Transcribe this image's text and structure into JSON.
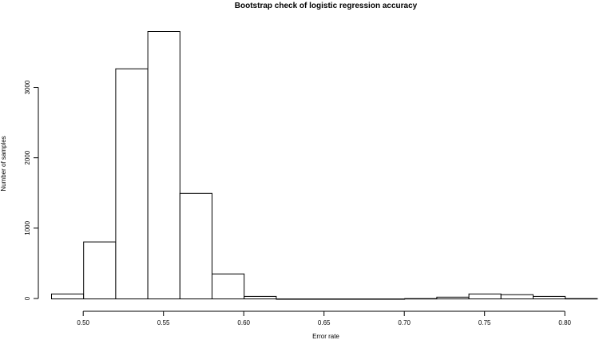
{
  "chart_data": {
    "type": "bar",
    "title": "Bootstrap check of logistic regression accuracy",
    "xlabel": "Error rate",
    "ylabel": "Number of samples",
    "xlim": [
      0.48,
      0.82
    ],
    "ylim": [
      0,
      3800
    ],
    "x_ticks": [
      "0.50",
      "0.55",
      "0.60",
      "0.65",
      "0.70",
      "0.75",
      "0.80"
    ],
    "y_ticks": [
      "0",
      "1000",
      "2000",
      "3000"
    ],
    "bins": [
      {
        "start": 0.48,
        "end": 0.5,
        "count": 70
      },
      {
        "start": 0.5,
        "end": 0.52,
        "count": 810
      },
      {
        "start": 0.52,
        "end": 0.54,
        "count": 3270
      },
      {
        "start": 0.54,
        "end": 0.56,
        "count": 3800
      },
      {
        "start": 0.56,
        "end": 0.58,
        "count": 1500
      },
      {
        "start": 0.58,
        "end": 0.6,
        "count": 355
      },
      {
        "start": 0.6,
        "end": 0.62,
        "count": 35
      },
      {
        "start": 0.62,
        "end": 0.64,
        "count": 0
      },
      {
        "start": 0.64,
        "end": 0.66,
        "count": 0
      },
      {
        "start": 0.66,
        "end": 0.68,
        "count": 0
      },
      {
        "start": 0.68,
        "end": 0.7,
        "count": 0
      },
      {
        "start": 0.7,
        "end": 0.72,
        "count": 5
      },
      {
        "start": 0.72,
        "end": 0.74,
        "count": 25
      },
      {
        "start": 0.74,
        "end": 0.76,
        "count": 70
      },
      {
        "start": 0.76,
        "end": 0.78,
        "count": 60
      },
      {
        "start": 0.78,
        "end": 0.8,
        "count": 35
      },
      {
        "start": 0.8,
        "end": 0.82,
        "count": 5
      }
    ],
    "grid": false,
    "legend": "none"
  }
}
